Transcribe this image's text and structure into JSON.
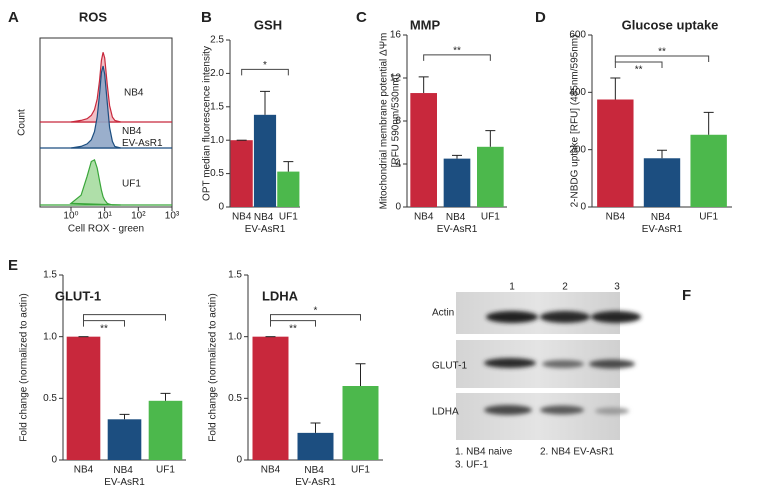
{
  "panel_labels": [
    "A",
    "B",
    "C",
    "D",
    "E",
    "F"
  ],
  "chart_data": [
    {
      "type": "density",
      "title": "ROS",
      "xlabel": "Cell ROX - green",
      "ylabel": "Count",
      "xscale": "log",
      "xlim": [
        0.12,
        1000
      ],
      "xticks": [
        {
          "value": 1,
          "label": "10⁰"
        },
        {
          "value": 10,
          "label": "10¹"
        },
        {
          "value": 100,
          "label": "10²"
        },
        {
          "value": 1000,
          "label": "10³"
        }
      ],
      "ylim": [
        0,
        100
      ],
      "x": [
        1,
        2,
        3,
        4,
        5,
        6,
        7,
        8,
        9,
        10,
        12,
        14,
        17,
        20,
        30
      ],
      "series": [
        {
          "name": "NB4",
          "color": "#c8283c",
          "fill": "#f2b9c0",
          "values": [
            0,
            2,
            4,
            8,
            15,
            28,
            50,
            75,
            85,
            78,
            45,
            20,
            6,
            2,
            0
          ]
        },
        {
          "name": "NB4 EV-AsR1",
          "color": "#1c4e80",
          "fill": "#8fa6c6",
          "values": [
            0,
            2,
            5,
            10,
            20,
            38,
            65,
            92,
            100,
            90,
            55,
            25,
            8,
            2,
            0
          ]
        },
        {
          "name": "UF1",
          "color": "#3aa63a",
          "fill": "#a6dca0",
          "values": [
            2,
            12,
            35,
            53,
            55,
            45,
            30,
            18,
            10,
            6,
            2,
            1,
            0,
            0,
            0
          ]
        }
      ]
    },
    {
      "type": "bar",
      "title": "GSH",
      "ylabel": "OPT median fluorescence intensity",
      "categories": [
        "NB4",
        "NB4 EV-AsR1",
        "UF1"
      ],
      "colors": [
        "#c8283c",
        "#1c4e80",
        "#4cb84c"
      ],
      "values": [
        1.0,
        1.38,
        0.53
      ],
      "errors": [
        0,
        0.35,
        0.15
      ],
      "ylim": [
        0,
        2.5
      ],
      "yticks": [
        0,
        0.5,
        {
          "value": 1,
          "label": "1.0"
        },
        1.5,
        {
          "value": 2,
          "label": "2.0"
        },
        2.5
      ],
      "significance": [
        {
          "from": 0,
          "to": 2,
          "label": "*"
        }
      ]
    },
    {
      "type": "bar",
      "title": "MMP",
      "ylabel": [
        "Mitochondrial membrane potential ΔΨm",
        "[RFU 590nm/530nm]"
      ],
      "categories": [
        "NB4",
        "NB4 EV-AsR1",
        "UF1"
      ],
      "colors": [
        "#c8283c",
        "#1c4e80",
        "#4cb84c"
      ],
      "values": [
        10.6,
        4.5,
        5.6
      ],
      "errors": [
        1.5,
        0.3,
        1.5
      ],
      "ylim": [
        0,
        16
      ],
      "yticks": [
        0,
        4,
        8,
        12,
        16
      ],
      "significance": [
        {
          "from": 0,
          "to": 2,
          "label": "**"
        }
      ]
    },
    {
      "type": "bar",
      "title": "Glucose uptake",
      "ylabel": "2-NBDG uptake [RFU] (485nm/595nm)",
      "categories": [
        "NB4",
        "NB4 EV-AsR1",
        "UF1"
      ],
      "colors": [
        "#c8283c",
        "#1c4e80",
        "#4cb84c"
      ],
      "values": [
        375,
        170,
        252
      ],
      "errors": [
        75,
        28,
        78
      ],
      "ylim": [
        0,
        600
      ],
      "yticks": [
        0,
        200,
        400,
        600
      ],
      "significance": [
        {
          "from": 0,
          "to": 1,
          "label": "**"
        },
        {
          "from": 0,
          "to": 2,
          "label": "**"
        }
      ]
    },
    {
      "type": "bar",
      "title": "GLUT-1",
      "ylabel": "Fold change (normalized to actin)",
      "categories": [
        "NB4",
        "NB4 EV-AsR1",
        "UF1"
      ],
      "colors": [
        "#c8283c",
        "#1c4e80",
        "#4cb84c"
      ],
      "values": [
        1.0,
        0.33,
        0.48
      ],
      "errors": [
        0,
        0.04,
        0.06
      ],
      "ylim": [
        0,
        1.5
      ],
      "yticks": [
        0,
        0.5,
        {
          "value": 1,
          "label": "1.0"
        },
        1.5
      ],
      "significance": [
        {
          "from": 0,
          "to": 1,
          "label": "**"
        },
        {
          "from": 0,
          "to": 2
        }
      ]
    },
    {
      "type": "bar",
      "title": "LDHA",
      "ylabel": "Fold change (normalized to actin)",
      "categories": [
        "NB4",
        "NB4 EV-AsR1",
        "UF1"
      ],
      "colors": [
        "#c8283c",
        "#1c4e80",
        "#4cb84c"
      ],
      "values": [
        1.0,
        0.22,
        0.6
      ],
      "errors": [
        0,
        0.08,
        0.18
      ],
      "ylim": [
        0,
        1.5
      ],
      "yticks": [
        0,
        0.5,
        {
          "value": 1,
          "label": "1.0"
        },
        1.5
      ],
      "significance": [
        {
          "from": 0,
          "to": 1,
          "label": "**"
        },
        {
          "from": 0,
          "to": 2,
          "label": "*"
        }
      ]
    }
  ],
  "blot": {
    "lanes": [
      "1",
      "2",
      "3"
    ],
    "rows": [
      "Actin",
      "GLUT-1",
      "LDHA"
    ],
    "legend": [
      "1. NB4 naive",
      "2. NB4 EV-AsR1",
      "3. UF-1"
    ]
  }
}
